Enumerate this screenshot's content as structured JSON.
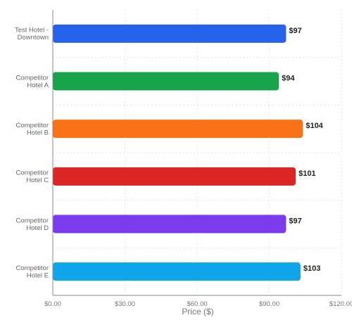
{
  "chart_data": {
    "type": "bar",
    "orientation": "horizontal",
    "categories": [
      [
        "Test Hotel -",
        "Downtown"
      ],
      [
        "Competitor",
        "Hotel A"
      ],
      [
        "Competitor",
        "Hotel B"
      ],
      [
        "Competitor",
        "Hotel C"
      ],
      [
        "Competitor",
        "Hotel D"
      ],
      [
        "Competitor",
        "Hotel E"
      ]
    ],
    "values": [
      97,
      94,
      104,
      101,
      97,
      103
    ],
    "value_labels": [
      "$97",
      "$94",
      "$104",
      "$101",
      "$97",
      "$103"
    ],
    "colors": [
      "#2563eb",
      "#16a34a",
      "#f97316",
      "#dc2626",
      "#7c3aed",
      "#0ea5e9"
    ],
    "xlabel": "Price ($)",
    "ylabel": "",
    "title": "",
    "xlim": [
      0,
      120
    ],
    "xticks": [
      0,
      30,
      60,
      90,
      120
    ],
    "xtick_labels": [
      "$0.00",
      "$30.00",
      "$60.00",
      "$90.00",
      "$120.00"
    ],
    "grid": true,
    "legend": "none"
  }
}
